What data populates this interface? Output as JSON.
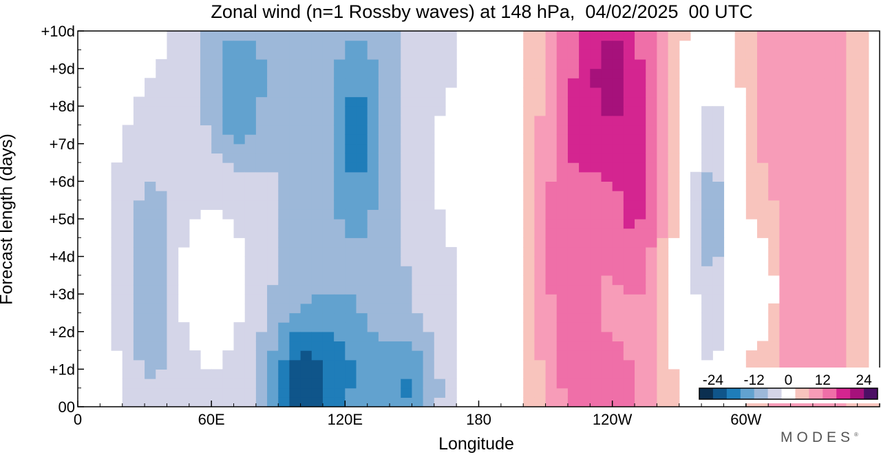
{
  "chart_data": {
    "type": "heatmap",
    "title": "Zonal wind (n=1 Rossby waves) at 148 hPa,  04/02/2025  00 UTC",
    "xlabel": "Longitude",
    "ylabel": "Forecast length (days)",
    "x_ticks": [
      {
        "lon": 0,
        "label": "0"
      },
      {
        "lon": 60,
        "label": "60E"
      },
      {
        "lon": 120,
        "label": "120E"
      },
      {
        "lon": 180,
        "label": "180"
      },
      {
        "lon": 240,
        "label": "120W"
      },
      {
        "lon": 300,
        "label": "60W"
      }
    ],
    "y_ticks": [
      {
        "day": 0,
        "label": "00"
      },
      {
        "day": 1,
        "label": "+1d"
      },
      {
        "day": 2,
        "label": "+2d"
      },
      {
        "day": 3,
        "label": "+3d"
      },
      {
        "day": 4,
        "label": "+4d"
      },
      {
        "day": 5,
        "label": "+5d"
      },
      {
        "day": 6,
        "label": "+6d"
      },
      {
        "day": 7,
        "label": "+7d"
      },
      {
        "day": 8,
        "label": "+8d"
      },
      {
        "day": 9,
        "label": "+9d"
      },
      {
        "day": 10,
        "label": "+10d"
      }
    ],
    "xlim": [
      0,
      360
    ],
    "ylim": [
      0,
      10
    ],
    "x_minor_step": 10,
    "y_minor_step": 0.5,
    "colorbar": {
      "levels": [
        -28,
        -24,
        -20,
        -16,
        -12,
        -8,
        -4,
        4,
        8,
        12,
        16,
        20,
        24,
        28
      ],
      "colors": [
        "#0b2f50",
        "#0f558a",
        "#1f7db9",
        "#62a2cf",
        "#9db8d9",
        "#d4d5e8",
        "#ffffff",
        "#f8c4bd",
        "#f79cb8",
        "#ef6fa8",
        "#d42590",
        "#a6117b",
        "#4c0f65"
      ],
      "tick_labels": [
        {
          "value": -24,
          "label": "-24"
        },
        {
          "value": -12,
          "label": "-12"
        },
        {
          "value": 0,
          "label": "0"
        },
        {
          "value": 12,
          "label": "12"
        },
        {
          "value": 24,
          "label": "24"
        }
      ]
    },
    "field": {
      "grid_lon_step": 10,
      "grid_day_step": 0.5,
      "components": [
        {
          "lon": 120,
          "day": 5,
          "amp": -9.5,
          "sx": 48,
          "sy": 20
        },
        {
          "lon": 112,
          "day": 0.8,
          "amp": -8,
          "sx": 18,
          "sy": 1.4
        },
        {
          "lon": 100,
          "day": 0.6,
          "amp": -8,
          "sx": 8,
          "sy": 1.0
        },
        {
          "lon": 150,
          "day": 0.5,
          "amp": -8,
          "sx": 8,
          "sy": 0.9
        },
        {
          "lon": 125,
          "day": 7.3,
          "amp": -8,
          "sx": 8,
          "sy": 1.8
        },
        {
          "lon": 70,
          "day": 9.2,
          "amp": -7,
          "sx": 14,
          "sy": 1.2
        },
        {
          "lon": 72,
          "day": 7.5,
          "amp": -5,
          "sx": 8,
          "sy": 0.9
        },
        {
          "lon": 33,
          "day": 2.8,
          "amp": -8,
          "sx": 13,
          "sy": 2.6
        },
        {
          "lon": 20,
          "day": 6,
          "amp": -3,
          "sx": 25,
          "sy": 3
        },
        {
          "lon": 58,
          "day": 3.3,
          "amp": 8,
          "sx": 12,
          "sy": 1.2
        },
        {
          "lon": 170,
          "day": 6.4,
          "amp": 5,
          "sx": 8,
          "sy": 1.1
        },
        {
          "lon": 233,
          "day": 4.5,
          "amp": 11,
          "sx": 30,
          "sy": 14
        },
        {
          "lon": 240,
          "day": 9,
          "amp": 11,
          "sx": 14,
          "sy": 2.2
        },
        {
          "lon": 218,
          "day": 4,
          "amp": 6,
          "sx": 9,
          "sy": 3.5
        },
        {
          "lon": 252,
          "day": 5.2,
          "amp": 6,
          "sx": 7,
          "sy": 1.8
        },
        {
          "lon": 240,
          "day": 0.4,
          "amp": 5,
          "sx": 10,
          "sy": 0.9
        },
        {
          "lon": 325,
          "day": 5,
          "amp": 12,
          "sx": 25,
          "sy": 14
        },
        {
          "lon": 310,
          "day": 3.2,
          "amp": -7,
          "sx": 6,
          "sy": 1.6
        },
        {
          "lon": 285,
          "day": 4,
          "amp": -11,
          "sx": 11,
          "sy": 4
        },
        {
          "lon": 285,
          "day": 6,
          "amp": -5,
          "sx": 6,
          "sy": 2.5
        }
      ]
    }
  },
  "branding": {
    "logo": "MODES",
    "logo_mark": "®"
  }
}
